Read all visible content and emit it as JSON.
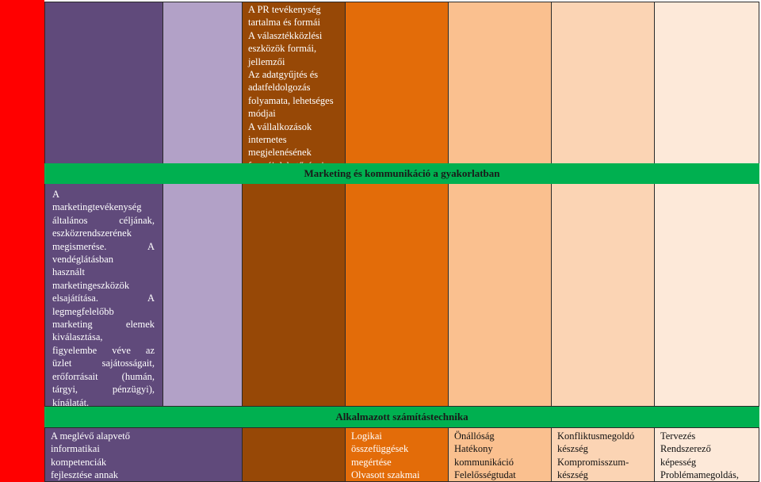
{
  "colors": {
    "red": "#ff0000",
    "purple_dark": "#604a7b",
    "lavender": "#b2a1c7",
    "brown": "#974806",
    "orange": "#e36c09",
    "peach_mid": "#fac08f",
    "peach_light": "#fbd4b4",
    "peach_pale": "#fde9d9",
    "banner_green": "#00b050"
  },
  "top": {
    "col_purple_text": [
      "A",
      "marketingtevékenység",
      "általános céljának,",
      "eszközrendszerének",
      "megismerése. A",
      "vendéglátásban",
      "használt",
      "marketingeszközök",
      "elsajátítása. A",
      "legmegfelelőbb",
      "marketing elemek",
      "kiválasztása,",
      "figyelembe véve az",
      "üzlet sajátosságait,",
      "erőforrásait (humán,",
      "tárgyi, pénzügyi),",
      "kínálatát."
    ],
    "col_brown_text": [
      "A PR tevékenység",
      "tartalma és formái",
      "A választékközlési",
      "eszközök formái,",
      "jellemzői",
      "Az adatgyűjtés és",
      "adatfeldolgozás",
      "folyamata, lehetséges",
      "módjai",
      "A vállalkozások",
      "internetes",
      "megjelenésének",
      "formái, lehetőségei"
    ]
  },
  "banners": {
    "marketing": "Marketing és kommunikáció a gyakorlatban",
    "computing": "Alkalmazott számítástechnika"
  },
  "bottom": {
    "col_purple_text": [
      "A meglévő alapvető",
      "informatikai",
      "kompetenciák",
      "fejlesztése annak"
    ],
    "col_orange_text": [
      "Logikai",
      "összefüggések",
      "megértése",
      "Olvasott szakmai"
    ],
    "col_peach_mid_text": [
      "Önállóság",
      "Hatékony",
      "kommunikáció",
      "Felelősségtudat"
    ],
    "col_peach_light_text": [
      "Konfliktusmegoldó",
      "készség",
      "Kompromisszum-",
      "készség"
    ],
    "col_peach_pale_text": [
      "Tervezés",
      "Rendszerező",
      "képesség",
      "Problémamegoldás,"
    ]
  }
}
